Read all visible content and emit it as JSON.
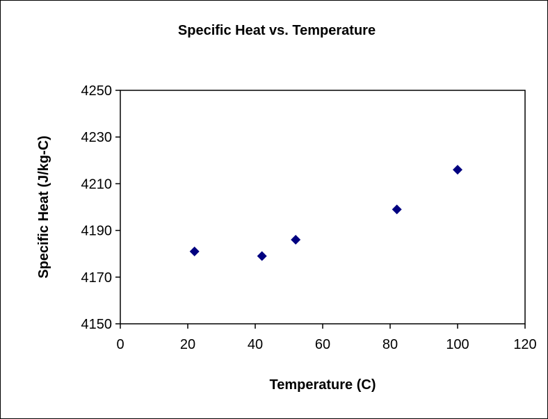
{
  "chart_data": {
    "type": "scatter",
    "title": "Specific Heat vs. Temperature",
    "xlabel": "Temperature (C)",
    "ylabel": "Specific Heat (J/kg-C)",
    "xlim": [
      0,
      120
    ],
    "ylim": [
      4150,
      4250
    ],
    "x_ticks": [
      0,
      20,
      40,
      60,
      80,
      100,
      120
    ],
    "y_ticks": [
      4150,
      4170,
      4190,
      4210,
      4230,
      4250
    ],
    "grid": false,
    "legend": "none",
    "marker": "diamond",
    "series": [
      {
        "color": "#000080",
        "points": [
          {
            "x": 22,
            "y": 4181
          },
          {
            "x": 42,
            "y": 4179
          },
          {
            "x": 52,
            "y": 4186
          },
          {
            "x": 82,
            "y": 4199
          },
          {
            "x": 100,
            "y": 4216
          }
        ]
      }
    ]
  }
}
